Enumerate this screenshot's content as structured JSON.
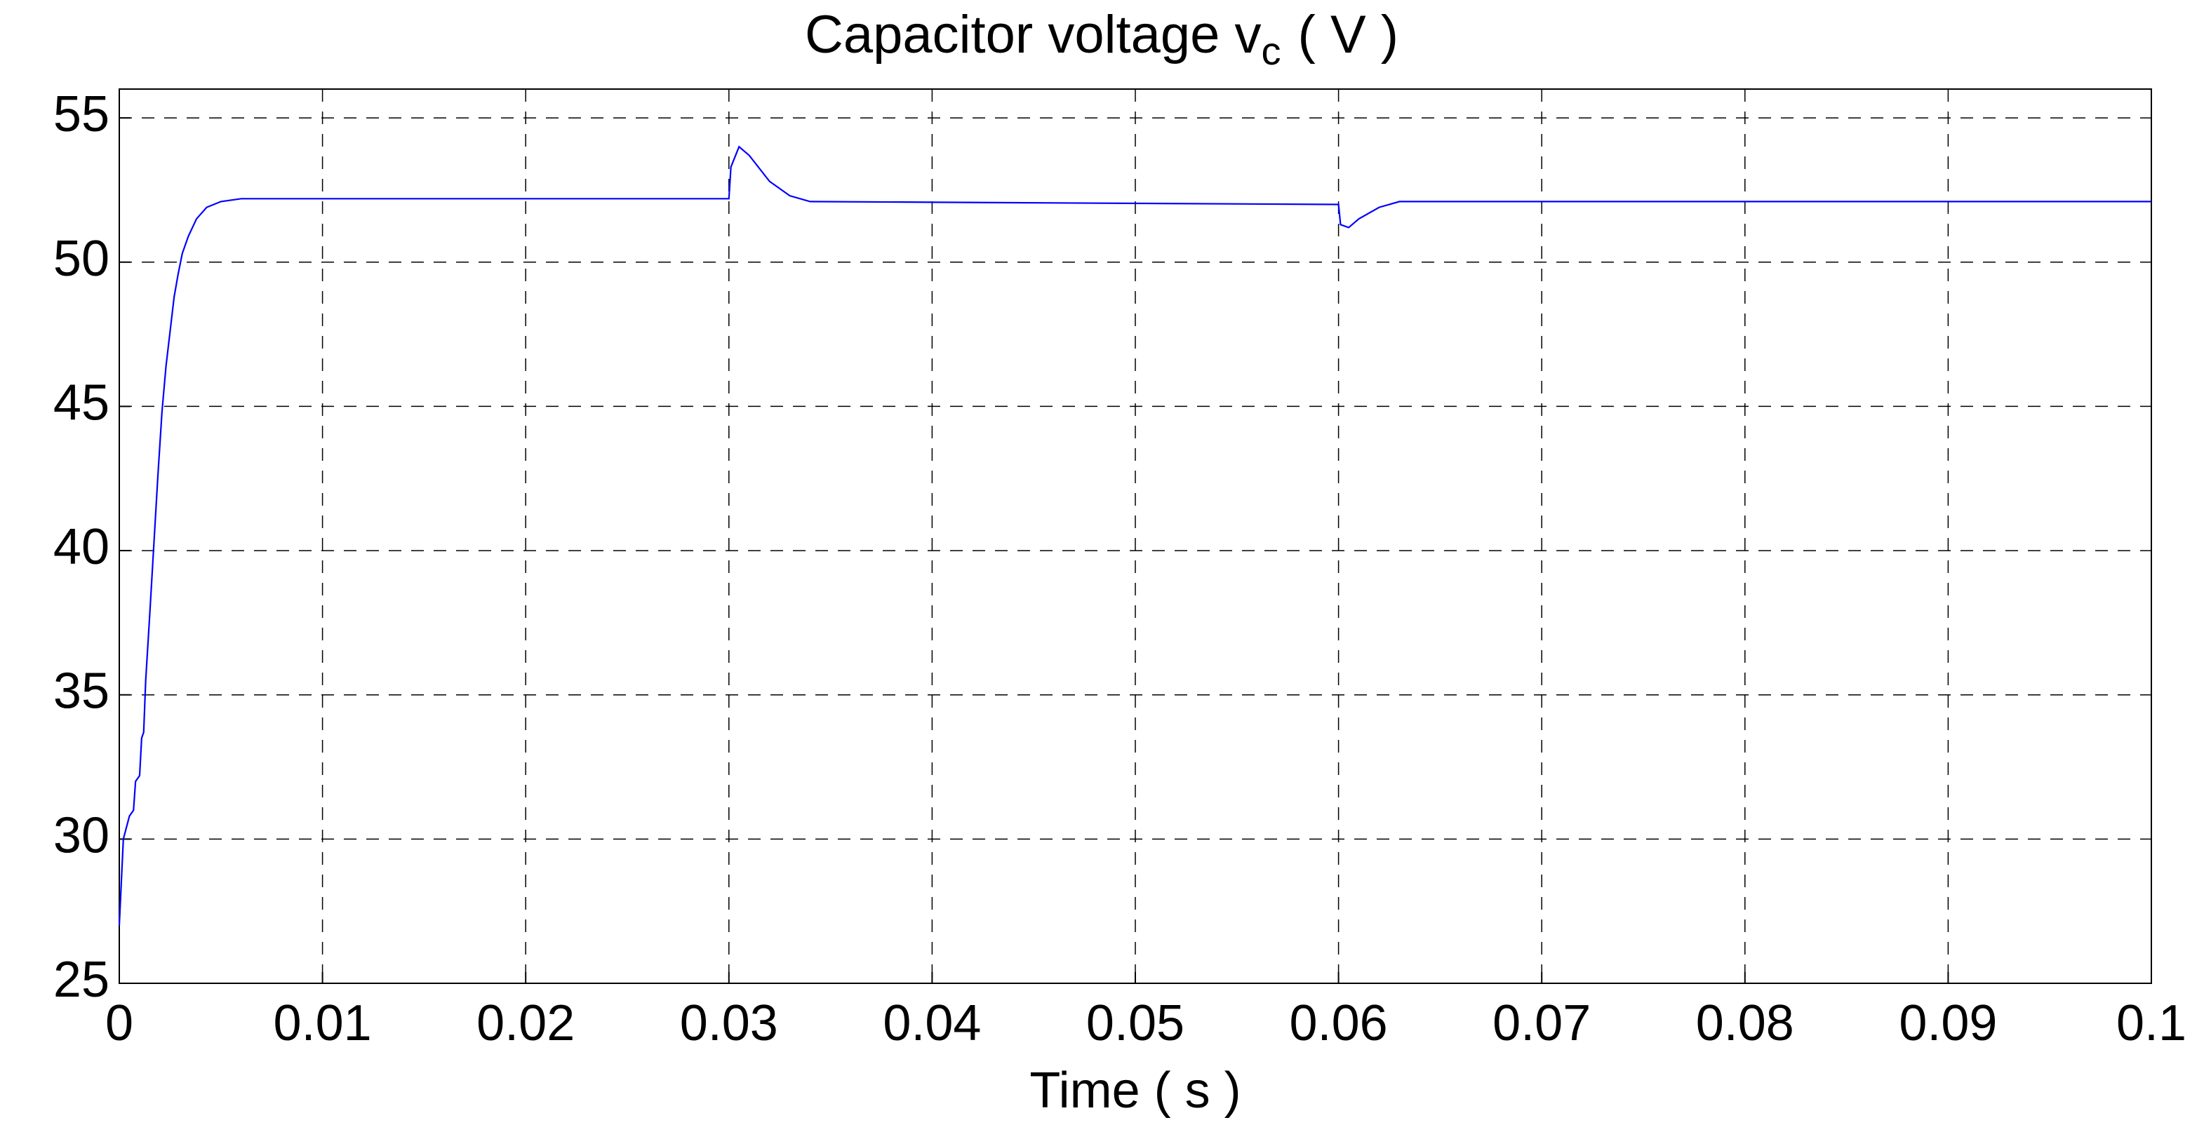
{
  "chart_data": {
    "type": "line",
    "title": {
      "text": "Capacitor voltage v",
      "subscript": "c",
      "suffix": "( V )"
    },
    "x_label": "Time ( s )",
    "x": [
      0,
      0.0002,
      0.0005,
      0.0007,
      0.0008,
      0.001,
      0.0011,
      0.0012,
      0.0013,
      0.0015,
      0.0017,
      0.0019,
      0.0021,
      0.0023,
      0.0025,
      0.0027,
      0.0029,
      0.0031,
      0.0034,
      0.0038,
      0.0043,
      0.005,
      0.006,
      0.007,
      0.03,
      0.0301,
      0.0305,
      0.031,
      0.032,
      0.033,
      0.034,
      0.06,
      0.0601,
      0.0605,
      0.061,
      0.062,
      0.063,
      0.1
    ],
    "series": [
      {
        "color": "#0000ff",
        "values": [
          27,
          30,
          30.8,
          31,
          32,
          32.2,
          33.5,
          33.7,
          35.5,
          37.8,
          40.2,
          42.6,
          44.8,
          46.4,
          47.6,
          48.8,
          49.6,
          50.3,
          50.9,
          51.5,
          51.9,
          52.1,
          52.2,
          52.2,
          52.2,
          53.3,
          54,
          53.7,
          52.8,
          52.3,
          52.1,
          52,
          51.3,
          51.2,
          51.5,
          51.9,
          52.1,
          52.1
        ]
      }
    ],
    "xlim": [
      0,
      0.1
    ],
    "xticks": [
      0,
      0.01,
      0.02,
      0.03,
      0.04,
      0.05,
      0.06,
      0.07,
      0.08,
      0.09,
      0.1
    ],
    "ylim": [
      25,
      56
    ],
    "yticks": [
      25,
      30,
      35,
      40,
      45,
      50,
      55
    ],
    "grid": true
  }
}
